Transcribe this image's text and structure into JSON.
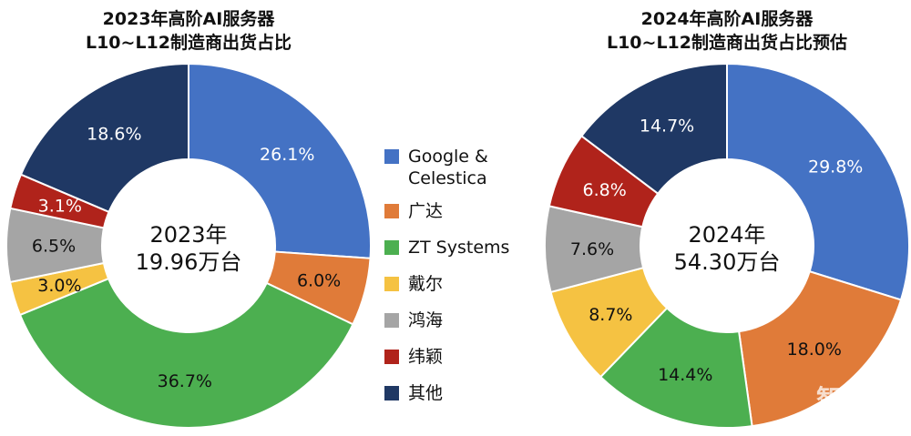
{
  "chart_data": [
    {
      "type": "pie",
      "title_lines": [
        "2023年高阶AI服务器",
        "L10~L12制造商出货占比"
      ],
      "center_lines": [
        "2023年",
        "19.96万台"
      ],
      "categories": [
        "Google & Celestica",
        "广达",
        "ZT Systems",
        "戴尔",
        "鸿海",
        "纬颖",
        "其他"
      ],
      "values": [
        26.1,
        6.0,
        36.7,
        3.0,
        6.5,
        3.1,
        18.6
      ],
      "labels": [
        "26.1%",
        "6.0%",
        "36.7%",
        "3.0%",
        "6.5%",
        "3.1%",
        "18.6%"
      ]
    },
    {
      "type": "pie",
      "title_lines": [
        "2024年高阶AI服务器",
        "L10~L12制造商出货占比预估"
      ],
      "center_lines": [
        "2024年",
        "54.30万台"
      ],
      "categories": [
        "Google & Celestica",
        "广达",
        "ZT Systems",
        "戴尔",
        "鸿海",
        "纬颖",
        "其他"
      ],
      "values": [
        29.8,
        18.0,
        14.4,
        8.7,
        7.6,
        6.8,
        14.7
      ],
      "labels": [
        "29.8%",
        "18.0%",
        "14.4%",
        "8.7%",
        "7.6%",
        "6.8%",
        "14.7%"
      ]
    }
  ],
  "legend": [
    {
      "label": "Google &\nCelestica",
      "color": "#4472C4"
    },
    {
      "label": "广达",
      "color": "#E07B39"
    },
    {
      "label": "ZT Systems",
      "color": "#4CAF50"
    },
    {
      "label": "戴尔",
      "color": "#F5C242"
    },
    {
      "label": "鸿海",
      "color": "#A5A5A5"
    },
    {
      "label": "纬颖",
      "color": "#B0231B"
    },
    {
      "label": "其他",
      "color": "#1F3864"
    }
  ],
  "label_colors": [
    "#ffffff",
    "#111111",
    "#111111",
    "#111111",
    "#111111",
    "#ffffff",
    "#ffffff"
  ],
  "watermark": "智东西"
}
